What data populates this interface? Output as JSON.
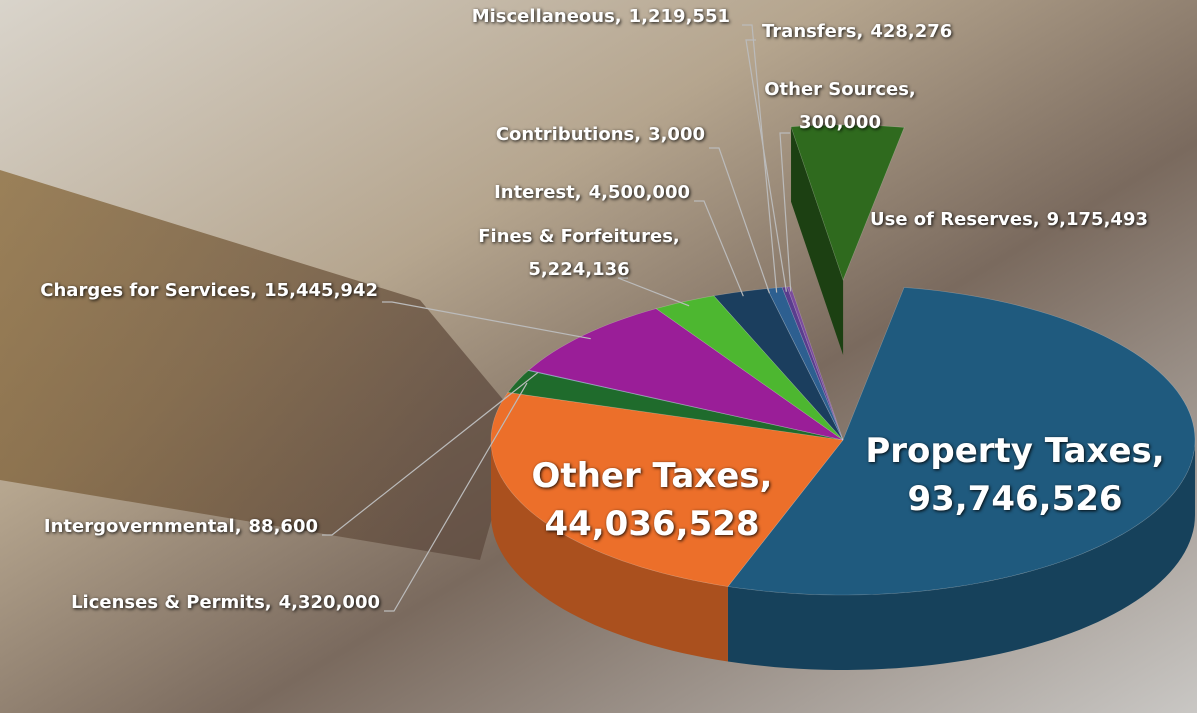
{
  "chart_data": {
    "type": "pie3d",
    "categories": [
      "Property Taxes,",
      "Other Taxes,",
      "Licenses & Permits,",
      "Intergovernmental,",
      "Charges for Services,",
      "Fines & Forfeitures,",
      "Interest,",
      "Contributions,",
      "Miscellaneous,",
      "Transfers,",
      "Other Sources,",
      "Use of Reserves,"
    ],
    "values": [
      93746526,
      44036528,
      4320000,
      88600,
      15445942,
      5224136,
      4500000,
      3000,
      1219551,
      428276,
      300000,
      9175493
    ],
    "value_labels": [
      "93,746,526",
      "44,036,528",
      "4,320,000",
      "88,600",
      "15,445,942",
      "5,224,136",
      "4,500,000",
      "3,000",
      "1,219,551",
      "428,276",
      "300,000",
      "9,175,493"
    ],
    "colors": [
      "#1f5a7e",
      "#ec6f2a",
      "#1f6b2c",
      "#3b7dc0",
      "#9a1e98",
      "#4db730",
      "#1b3e5e",
      "#808080",
      "#2d5f90",
      "#5a3d8e",
      "#7b4c9c",
      "#2f6a1e"
    ],
    "exploded": [
      11
    ]
  }
}
